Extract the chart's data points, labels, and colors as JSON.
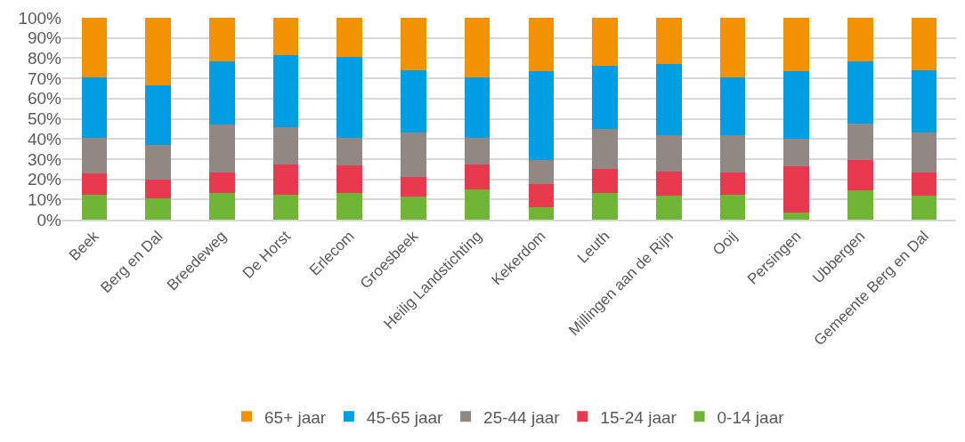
{
  "chart_data": {
    "type": "bar",
    "stacked": true,
    "categories": [
      "Beek",
      "Berg en Dal",
      "Breedeweg",
      "De Horst",
      "Erlecom",
      "Groesbeek",
      "Heilig Landstichting",
      "Kekerdom",
      "Leuth",
      "Millingen aan de Rijn",
      "Ooij",
      "Persingen",
      "Ubbergen",
      "Gemeente Berg en Dal"
    ],
    "series": [
      {
        "name": "0-14 jaar",
        "color": "#70b535",
        "values": [
          12.5,
          10.5,
          13,
          12.5,
          13,
          11.5,
          15,
          6,
          13,
          12,
          12.5,
          3.5,
          14.5,
          12
        ]
      },
      {
        "name": "15-24 jaar",
        "color": "#e8394f",
        "values": [
          10.5,
          9.5,
          10.5,
          15,
          14,
          9.5,
          12.5,
          11.5,
          12,
          12,
          11,
          23,
          15,
          11.5
        ]
      },
      {
        "name": "25-44 jaar",
        "color": "#918883",
        "values": [
          17.5,
          17,
          23.5,
          18.5,
          13.5,
          22,
          13,
          12,
          20,
          18,
          18.5,
          13.5,
          18,
          19.5
        ]
      },
      {
        "name": "45-65 jaar",
        "color": "#009fe3",
        "values": [
          30,
          29.5,
          31.5,
          35.5,
          40,
          31,
          30,
          44,
          31,
          35,
          28.5,
          33.5,
          31,
          31
        ]
      },
      {
        "name": "65+ jaar",
        "color": "#f39200",
        "values": [
          29.5,
          33.5,
          21.5,
          18.5,
          19.5,
          26,
          29.5,
          26.5,
          24,
          23,
          29.5,
          26.5,
          21.5,
          26
        ]
      }
    ],
    "ylim": [
      0,
      100
    ],
    "yticks": [
      {
        "value": 0,
        "label": "0%"
      },
      {
        "value": 10,
        "label": "10%"
      },
      {
        "value": 20,
        "label": "20%"
      },
      {
        "value": 30,
        "label": "30%"
      },
      {
        "value": 40,
        "label": "40%"
      },
      {
        "value": 50,
        "label": "50%"
      },
      {
        "value": 60,
        "label": "60%"
      },
      {
        "value": 70,
        "label": "70%"
      },
      {
        "value": 80,
        "label": "80%"
      },
      {
        "value": 90,
        "label": "90%"
      },
      {
        "value": 100,
        "label": "100%"
      }
    ],
    "grid": "y",
    "legend": "bottom"
  }
}
